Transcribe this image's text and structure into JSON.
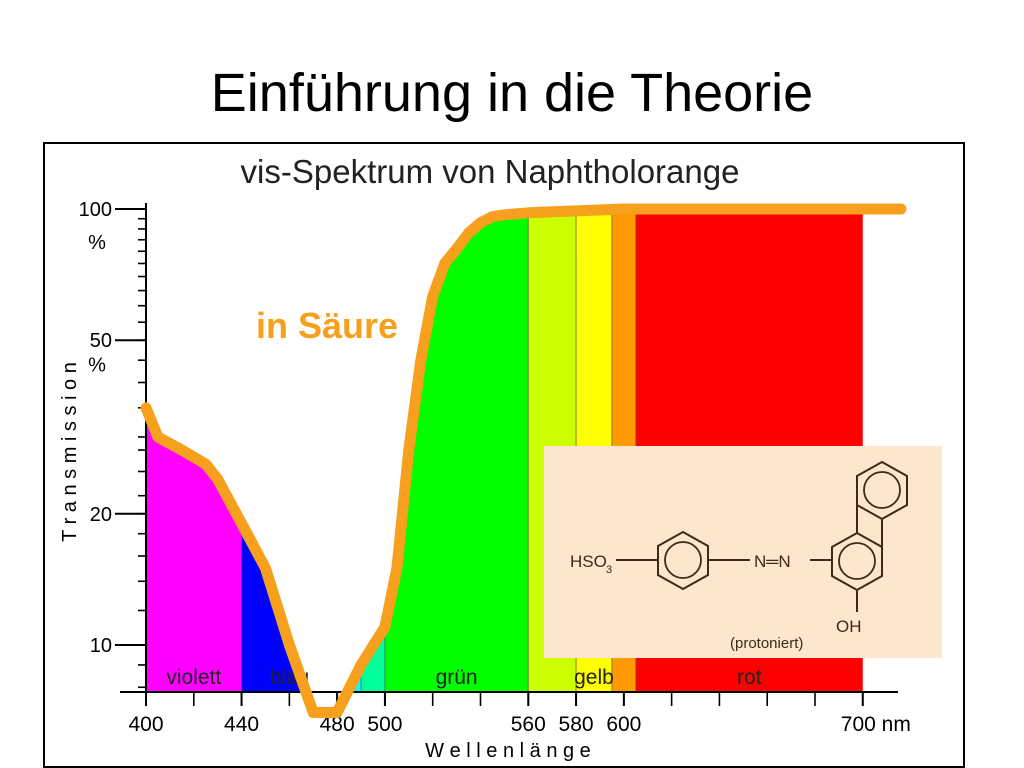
{
  "slide": {
    "title": "Einführung in die Theorie"
  },
  "chart_data": {
    "type": "line",
    "title": "vis-Spektrum von Naphtholorange",
    "xlabel": "W e l l e n l ä n g e",
    "ylabel": "T r a n s m i s s i o n",
    "x_unit": "nm",
    "xlim": [
      400,
      716
    ],
    "ylim": [
      0,
      100
    ],
    "x_ticks": [
      {
        "value": 400,
        "label": "400"
      },
      {
        "value": 440,
        "label": "440"
      },
      {
        "value": 480,
        "label": "480"
      },
      {
        "value": 500,
        "label": "500"
      },
      {
        "value": 560,
        "label": "560"
      },
      {
        "value": 580,
        "label": "580"
      },
      {
        "value": 600,
        "label": "600"
      },
      {
        "value": 700,
        "label": "700 nm"
      }
    ],
    "y_ticks": [
      {
        "value": 10,
        "label": "10"
      },
      {
        "value": 20,
        "label": "20"
      },
      {
        "value": 50,
        "label": "50"
      },
      {
        "value": 100,
        "label": "100"
      }
    ],
    "y_unit_labels": [
      {
        "value": 84,
        "label": "%"
      },
      {
        "value": 44,
        "label": "%"
      }
    ],
    "color_bands": [
      {
        "name": "violett",
        "from": 400,
        "to": 440,
        "color": "#ff00ff",
        "label": "violett"
      },
      {
        "name": "blau",
        "from": 440,
        "to": 480,
        "color": "#0000ff",
        "label": "blau"
      },
      {
        "name": "cyan-1",
        "from": 480,
        "to": 490,
        "color": "#00ffff",
        "label": ""
      },
      {
        "name": "cyan-2",
        "from": 490,
        "to": 500,
        "color": "#00ff99",
        "label": ""
      },
      {
        "name": "grün",
        "from": 500,
        "to": 560,
        "color": "#00ff00",
        "label": "grün"
      },
      {
        "name": "gelbgrün",
        "from": 560,
        "to": 580,
        "color": "#ccff00",
        "label": ""
      },
      {
        "name": "gelb",
        "from": 580,
        "to": 595,
        "color": "#ffff00",
        "label": "gelb"
      },
      {
        "name": "orange",
        "from": 595,
        "to": 605,
        "color": "#ff9900",
        "label": ""
      },
      {
        "name": "rot",
        "from": 605,
        "to": 700,
        "color": "#ff0000",
        "label": "rot"
      }
    ],
    "series": [
      {
        "name": "in Säure",
        "color": "#f7a01e",
        "points": [
          [
            400,
            35
          ],
          [
            405,
            30
          ],
          [
            415,
            28
          ],
          [
            425,
            26
          ],
          [
            430,
            24
          ],
          [
            440,
            19
          ],
          [
            450,
            15
          ],
          [
            460,
            10
          ],
          [
            470,
            7
          ],
          [
            480,
            7
          ],
          [
            490,
            9
          ],
          [
            500,
            11
          ],
          [
            505,
            15
          ],
          [
            510,
            28
          ],
          [
            515,
            45
          ],
          [
            520,
            63
          ],
          [
            525,
            75
          ],
          [
            530,
            81
          ],
          [
            535,
            88
          ],
          [
            540,
            93
          ],
          [
            545,
            96
          ],
          [
            550,
            97
          ],
          [
            560,
            98
          ],
          [
            580,
            99
          ],
          [
            600,
            100
          ],
          [
            650,
            100
          ],
          [
            700,
            100
          ],
          [
            716,
            100
          ]
        ]
      }
    ],
    "annotations": [
      {
        "text": "in Säure",
        "color": "#f7a01e"
      }
    ],
    "inset": {
      "background": "#fce7ce",
      "labels": {
        "hso3": "HSO",
        "hso3_sub": "3",
        "azo": "N═N",
        "oh": "OH",
        "caption": "(protoniert)"
      }
    }
  }
}
